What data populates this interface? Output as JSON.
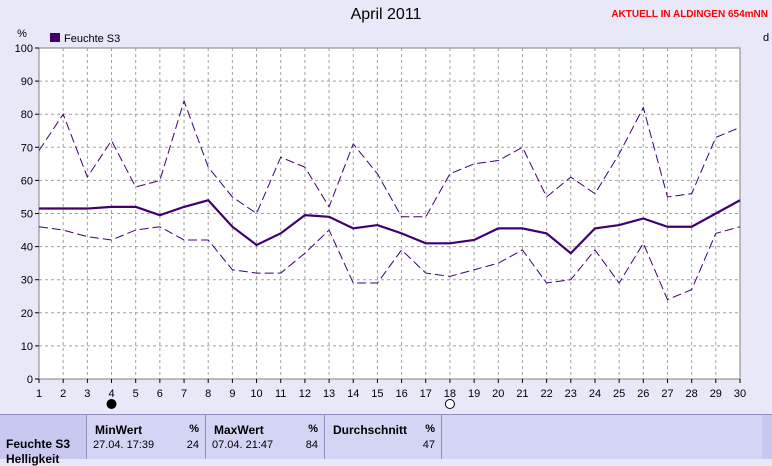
{
  "title": "April 2011",
  "station": "AKTUELL IN ALDINGEN 654mNN",
  "right_edge_label": "d",
  "chart_data": {
    "type": "line",
    "title": "April 2011",
    "ylabel": "%",
    "ylim": [
      0,
      100
    ],
    "yticks": [
      0,
      10,
      20,
      30,
      40,
      50,
      60,
      70,
      80,
      90,
      100
    ],
    "x": [
      1,
      2,
      3,
      4,
      5,
      6,
      7,
      8,
      9,
      10,
      11,
      12,
      13,
      14,
      15,
      16,
      17,
      18,
      19,
      20,
      21,
      22,
      23,
      24,
      25,
      26,
      27,
      28,
      29,
      30
    ],
    "xlim": [
      1,
      30
    ],
    "grid": true,
    "legend": "top-left",
    "series": [
      {
        "name": "Feuchte S3",
        "role": "mean",
        "color": "#400070",
        "values": [
          51.5,
          51.5,
          51.5,
          52,
          52,
          49.5,
          52,
          54,
          46,
          40.5,
          44,
          49.5,
          49,
          45.5,
          46.5,
          44,
          41,
          41,
          42,
          45.5,
          45.5,
          44,
          38,
          45.5,
          46.5,
          48.5,
          46,
          46,
          50,
          54
        ]
      },
      {
        "name": "",
        "role": "max",
        "color": "#400070",
        "values": [
          69,
          80,
          61,
          72,
          58,
          60,
          84,
          64,
          55,
          50,
          67,
          64,
          52,
          71,
          62,
          49,
          49,
          62,
          65,
          66,
          70,
          55,
          61,
          56,
          68,
          82,
          55,
          56,
          73,
          76
        ]
      },
      {
        "name": "",
        "role": "min",
        "color": "#400070",
        "values": [
          46,
          45,
          43,
          42,
          45,
          46,
          42,
          42,
          33,
          32,
          32,
          38,
          45,
          29,
          29,
          39,
          32,
          31,
          33,
          35,
          39,
          29,
          30,
          39,
          29,
          41,
          24,
          27,
          44,
          46
        ]
      }
    ],
    "moon_markers": [
      {
        "x": 4,
        "phase": "new"
      },
      {
        "x": 18,
        "phase": "full"
      }
    ]
  },
  "stats": {
    "row_label": "Feuchte S3",
    "row_label_2": "Helligkeit",
    "min": {
      "header": "MinWert",
      "unit": "%",
      "date": "27.04.  17:39",
      "value": "24"
    },
    "max": {
      "header": "MaxWert",
      "unit": "%",
      "date": "07.04.  21:47",
      "value": "84"
    },
    "avg": {
      "header": "Durchschnitt",
      "unit": "%",
      "value": "47"
    }
  }
}
